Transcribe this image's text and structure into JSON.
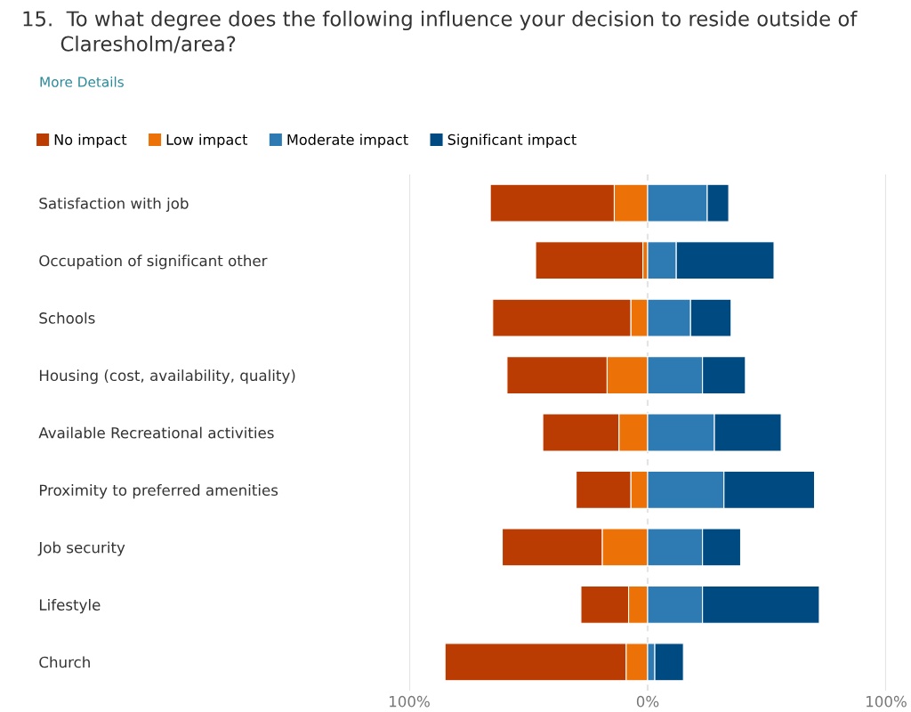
{
  "chart_data": {
    "type": "bar",
    "orientation": "horizontal",
    "title": "15.  To what degree does the following influence your decision to reside outside of\n      Claresholm/area?",
    "annotations": [
      "More Details"
    ],
    "categories": [
      "Satisfaction with job",
      "Occupation of significant other",
      "Schools",
      "Housing (cost, availability, quality)",
      "Available Recreational activities",
      "Proximity to preferred amenities",
      "Job security",
      "Lifestyle",
      "Church"
    ],
    "series": [
      {
        "name": "No impact",
        "color": "#bb3c03",
        "values": [
          52,
          45,
          58,
          42,
          32,
          23,
          42,
          20,
          76
        ],
        "base": [
          -66,
          -47,
          -65,
          -59,
          -44,
          -30,
          -61,
          -28,
          -85
        ]
      },
      {
        "name": "Low impact",
        "color": "#ec7207",
        "values": [
          14,
          2,
          7,
          17,
          12,
          7,
          19,
          8,
          9
        ],
        "base": [
          -14,
          -2,
          -7,
          -17,
          -12,
          -7,
          -19,
          -8,
          -9
        ]
      },
      {
        "name": "Moderate impact",
        "color": "#2e7ab2",
        "values": [
          25,
          12,
          18,
          23,
          28,
          32,
          23,
          23,
          3
        ],
        "base": [
          0,
          0,
          0,
          0,
          0,
          0,
          0,
          0,
          0
        ]
      },
      {
        "name": "Significant impact",
        "color": "#004a82",
        "values": [
          9,
          41,
          17,
          18,
          28,
          38,
          16,
          49,
          12
        ],
        "base": [
          25,
          12,
          18,
          23,
          28,
          32,
          23,
          23,
          3
        ]
      }
    ],
    "xlim": [
      -100,
      100
    ],
    "xticks": [
      {
        "value": -100,
        "label": "100%"
      },
      {
        "value": 0,
        "label": "0%"
      },
      {
        "value": 100,
        "label": "100%"
      }
    ],
    "grid": "x",
    "legend": "top left"
  }
}
